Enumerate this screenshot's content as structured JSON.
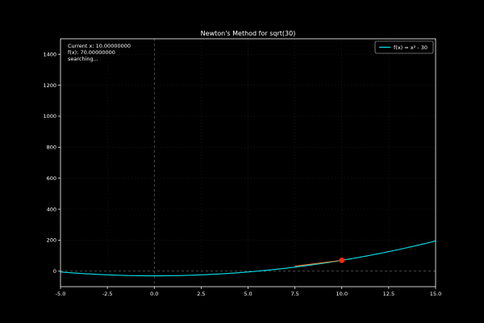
{
  "chart_data": {
    "type": "line",
    "title": "Newton's Method for sqrt(30)",
    "xlabel": "",
    "ylabel": "",
    "xlim": [
      -5,
      15
    ],
    "ylim": [
      -100,
      1500
    ],
    "xticks": [
      -5,
      -2.5,
      0,
      2.5,
      5,
      7.5,
      10,
      12.5,
      15
    ],
    "xtick_labels": [
      "-5.0",
      "-2.5",
      "0.0",
      "2.5",
      "5.0",
      "7.5",
      "10.0",
      "12.5",
      "15.0"
    ],
    "yticks": [
      0,
      200,
      400,
      600,
      800,
      1000,
      1200,
      1400
    ],
    "ytick_labels": [
      "0",
      "200",
      "400",
      "600",
      "800",
      "1000",
      "1200",
      "1400"
    ],
    "grid": true,
    "legend_placement": "top-right",
    "series": [
      {
        "name": "f(x) = x² - 30",
        "color": "#00e5ee",
        "x": [
          -5,
          -4,
          -3,
          -2,
          -1,
          0,
          1,
          2,
          3,
          4,
          5,
          6,
          7,
          8,
          9,
          10,
          11,
          12,
          13,
          14,
          15
        ],
        "y": [
          -5,
          -14,
          -21,
          -26,
          -29,
          -30,
          -29,
          -26,
          -21,
          -14,
          -5,
          6,
          19,
          34,
          51,
          70,
          91,
          114,
          139,
          166,
          195
        ]
      }
    ],
    "tangent_segment": {
      "color": "#e07a30",
      "x": [
        7.5,
        10
      ],
      "y": [
        32.5,
        70
      ]
    },
    "current_point": {
      "x": 10,
      "y": 70,
      "color": "#ff2a1a"
    },
    "annotation_lines": [
      "Current x: 10.00000000",
      "f(x): 70.00000000",
      "searching..."
    ]
  }
}
